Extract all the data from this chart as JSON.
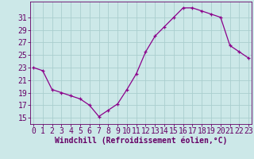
{
  "x": [
    0,
    1,
    2,
    3,
    4,
    5,
    6,
    7,
    8,
    9,
    10,
    11,
    12,
    13,
    14,
    15,
    16,
    17,
    18,
    19,
    20,
    21,
    22,
    23
  ],
  "y": [
    23,
    22.5,
    19.5,
    19,
    18.5,
    18,
    17,
    15.2,
    16.2,
    17.2,
    19.5,
    22,
    25.5,
    28,
    29.5,
    31,
    32.5,
    32.5,
    32,
    31.5,
    31,
    26.5,
    25.5,
    24.5
  ],
  "line_color": "#8B008B",
  "marker": "+",
  "marker_size": 3,
  "bg_color": "#cce8e8",
  "grid_color": "#aacece",
  "yticks": [
    15,
    17,
    19,
    21,
    23,
    25,
    27,
    29,
    31
  ],
  "xticks": [
    0,
    1,
    2,
    3,
    4,
    5,
    6,
    7,
    8,
    9,
    10,
    11,
    12,
    13,
    14,
    15,
    16,
    17,
    18,
    19,
    20,
    21,
    22,
    23
  ],
  "ylim": [
    14.0,
    33.5
  ],
  "xlim": [
    -0.3,
    23.3
  ],
  "xlabel": "Windchill (Refroidissement éolien,°C)",
  "xlabel_color": "#660066",
  "tick_color": "#660066",
  "spine_color": "#660066",
  "xlabel_fontsize": 7,
  "tick_fontsize": 7,
  "linewidth": 0.9,
  "markeredgewidth": 0.9
}
